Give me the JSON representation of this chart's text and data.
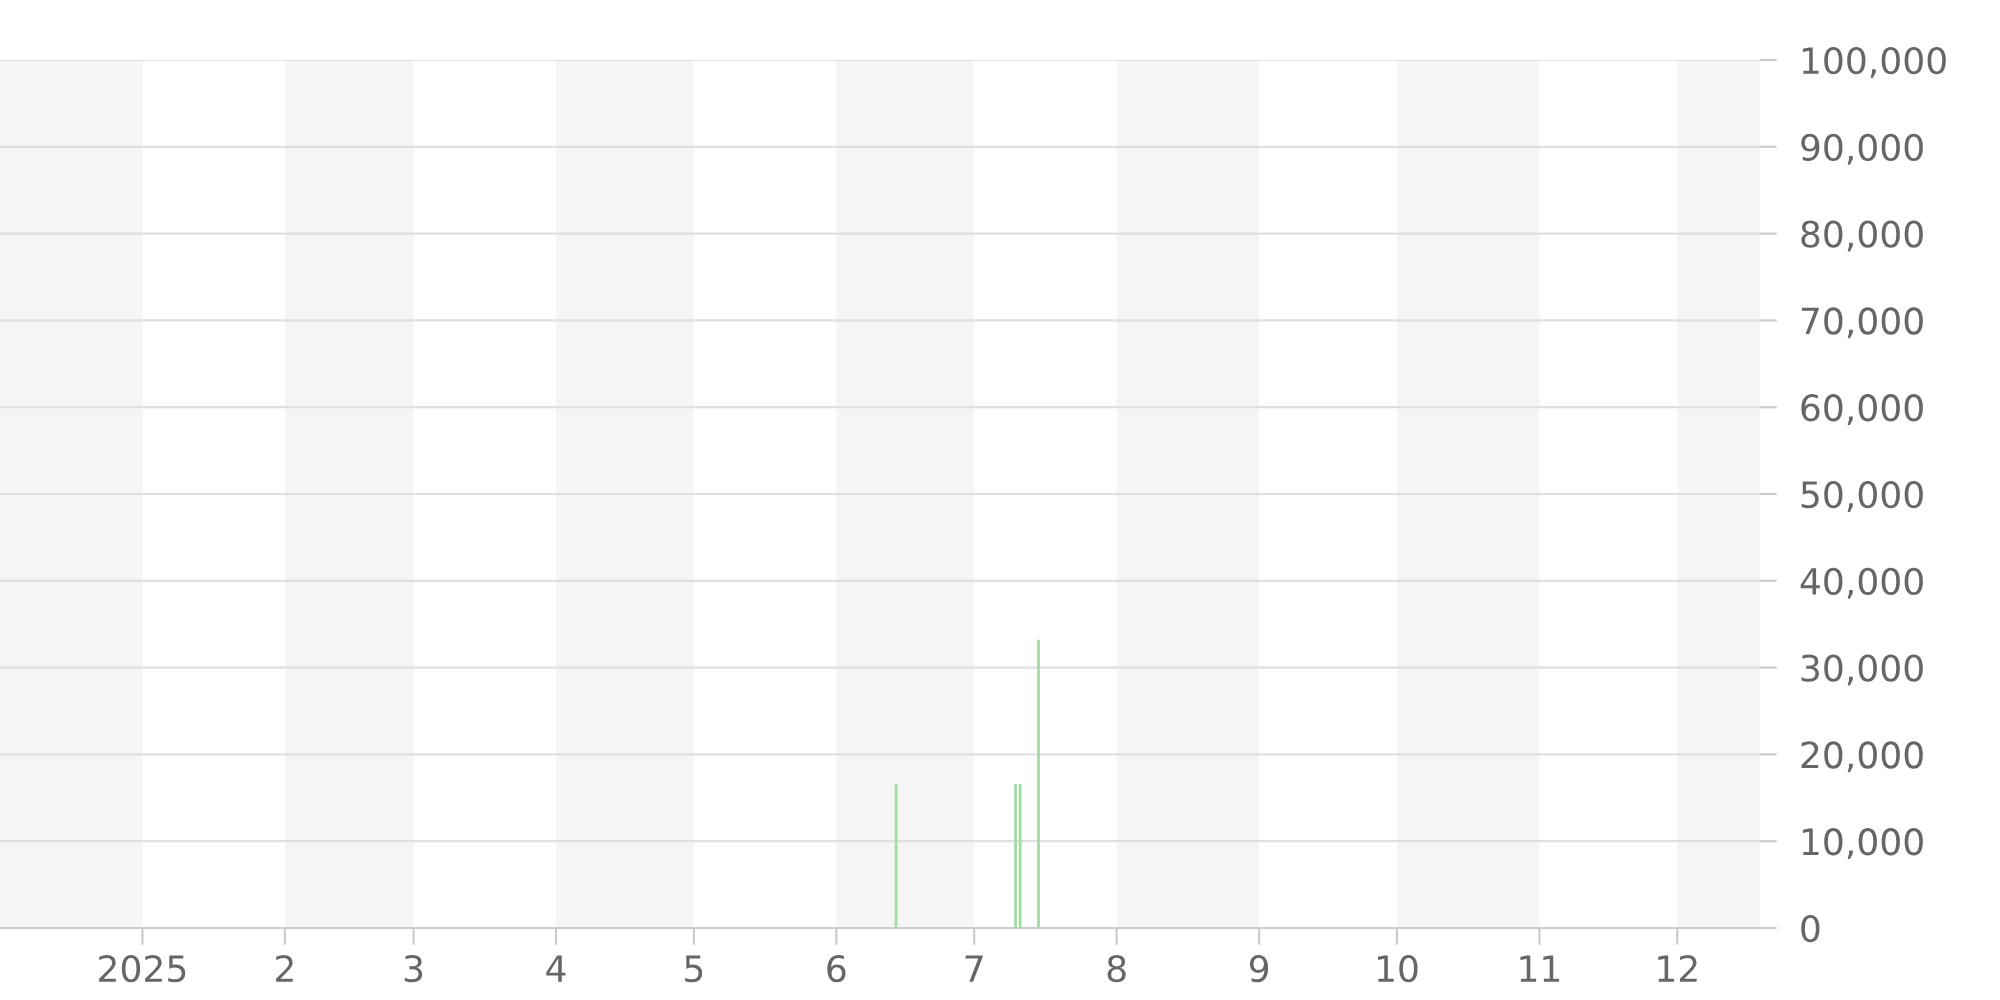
{
  "chart_data": {
    "type": "bar",
    "x": [
      "2025-06-14",
      "2025-07-10",
      "2025-07-11",
      "2025-07-15"
    ],
    "values": [
      16600,
      16600,
      16600,
      33200
    ],
    "color": "#9ddfa3",
    "xlim": [
      "2024-12-01",
      "2025-12-19"
    ],
    "xticks": [
      {
        "value": "2025-01-01",
        "label": "2025"
      },
      {
        "value": "2025-02-01",
        "label": "2"
      },
      {
        "value": "2025-03-01",
        "label": "3"
      },
      {
        "value": "2025-04-01",
        "label": "4"
      },
      {
        "value": "2025-05-01",
        "label": "5"
      },
      {
        "value": "2025-06-01",
        "label": "6"
      },
      {
        "value": "2025-07-01",
        "label": "7"
      },
      {
        "value": "2025-08-01",
        "label": "8"
      },
      {
        "value": "2025-09-01",
        "label": "9"
      },
      {
        "value": "2025-10-01",
        "label": "10"
      },
      {
        "value": "2025-11-01",
        "label": "11"
      },
      {
        "value": "2025-12-01",
        "label": "12"
      }
    ],
    "ylim": [
      0,
      100000
    ],
    "yticks": [
      {
        "value": 0,
        "label": "0"
      },
      {
        "value": 10000,
        "label": "10,000"
      },
      {
        "value": 20000,
        "label": "20,000"
      },
      {
        "value": 30000,
        "label": "30,000"
      },
      {
        "value": 40000,
        "label": "40,000"
      },
      {
        "value": 50000,
        "label": "50,000"
      },
      {
        "value": 60000,
        "label": "60,000"
      },
      {
        "value": 70000,
        "label": "70,000"
      },
      {
        "value": 80000,
        "label": "80,000"
      },
      {
        "value": 90000,
        "label": "90,000"
      },
      {
        "value": 100000,
        "label": "100,000"
      }
    ],
    "grid": "y",
    "bands": [
      {
        "axis": "x",
        "from": "2024-12-01",
        "to": "2025-01-01",
        "color": "#f5f5f5"
      },
      {
        "axis": "x",
        "from": "2025-02-01",
        "to": "2025-03-01",
        "color": "#f5f5f5"
      },
      {
        "axis": "x",
        "from": "2025-04-01",
        "to": "2025-05-01",
        "color": "#f5f5f5"
      },
      {
        "axis": "x",
        "from": "2025-06-01",
        "to": "2025-07-01",
        "color": "#f5f5f5"
      },
      {
        "axis": "x",
        "from": "2025-08-01",
        "to": "2025-09-01",
        "color": "#f5f5f5"
      },
      {
        "axis": "x",
        "from": "2025-10-01",
        "to": "2025-11-01",
        "color": "#f5f5f5"
      },
      {
        "axis": "x",
        "from": "2025-12-01",
        "to": "2025-12-19",
        "color": "#f5f5f5"
      }
    ]
  }
}
